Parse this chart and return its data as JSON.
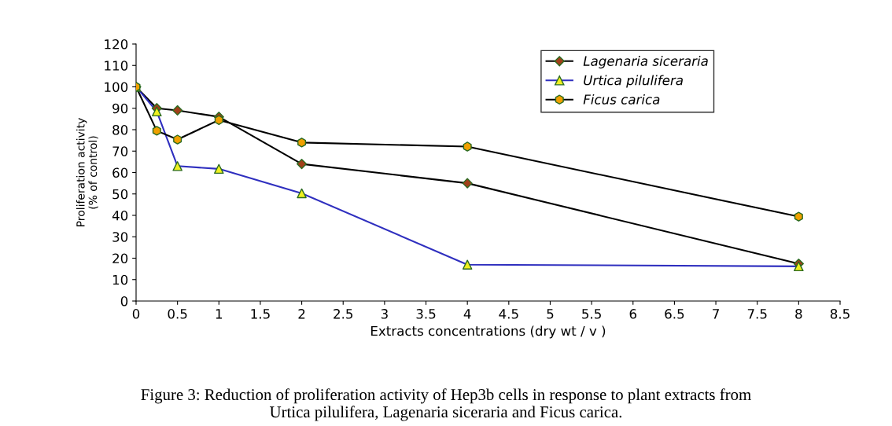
{
  "chart_data": {
    "type": "line",
    "xlabel": "Extracts concentrations (dry wt / v )",
    "ylabel": "Proliferation activity\n(% of control)",
    "x": [
      0,
      0.25,
      0.5,
      1,
      2,
      4,
      8
    ],
    "series": [
      {
        "name": "Lagenaria siceraria",
        "color": "#000000",
        "marker": "diamond",
        "colors": [
          "#a0401a",
          "#a0401a",
          "#a0401a",
          "#a0401a",
          "#a0401a",
          "#a0401a",
          "#a0401a"
        ],
        "values": [
          100,
          90,
          89,
          86,
          64,
          55,
          17.4
        ]
      },
      {
        "name": "Urtica pilulifera",
        "color": "#2f2fbf",
        "marker": "triangle",
        "colors": [
          "#f0f020",
          "#f0f020",
          "#f0f020",
          "#f0f020",
          "#f0f020",
          "#f0f020",
          "#f0f020"
        ],
        "values": [
          100,
          88.5,
          63,
          61.7,
          50.3,
          17,
          16.2
        ]
      },
      {
        "name": "Ficus carica",
        "color": "#000000",
        "marker": "circle",
        "colors": [
          "#f0a000",
          "#f0a000",
          "#f0a000",
          "#f0a000",
          "#f0a000",
          "#f0a000",
          "#f0a000"
        ],
        "values": [
          100,
          79.5,
          75.4,
          84.5,
          74,
          72.1,
          39.4
        ]
      }
    ],
    "xlim": [
      0,
      8.5
    ],
    "xticks": [
      0,
      0.5,
      1,
      1.5,
      2,
      2.5,
      3,
      3.5,
      4,
      4.5,
      5,
      5.5,
      6,
      6.5,
      7,
      7.5,
      8,
      8.5
    ],
    "ylim": [
      0,
      120
    ],
    "yticks": [
      0,
      10,
      20,
      30,
      40,
      50,
      60,
      70,
      80,
      90,
      100,
      110,
      120
    ],
    "grid": false,
    "legend": "top right",
    "line_style": "solid",
    "annotations": [
      "Figure 3: Reduction of proliferation activity of Hep3b cells in response to plant extracts from\nUrtica pilulifera, Lagenaria siceraria and Ficus carica."
    ]
  }
}
